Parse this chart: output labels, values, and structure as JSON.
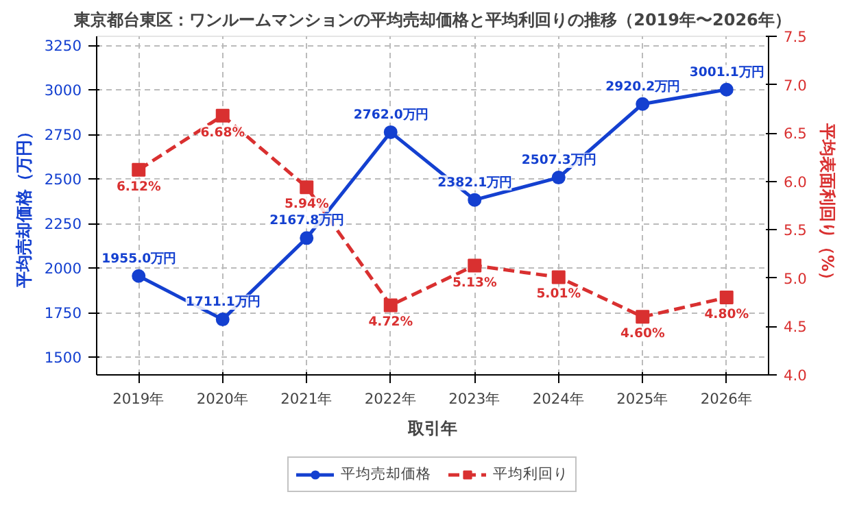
{
  "chart_data": {
    "type": "line",
    "title": "東京都台東区：ワンルームマンションの平均売却価格と平均利回りの推移（2019年〜2026年）",
    "xlabel": "取引年",
    "ylabel": "平均売却価格（万円）",
    "y2label": "平均表面利回り（%）",
    "categories": [
      "2019年",
      "2020年",
      "2021年",
      "2022年",
      "2023年",
      "2024年",
      "2025年",
      "2026年"
    ],
    "series": [
      {
        "name": "平均売却価格",
        "color": "#1440d0",
        "marker": "circle",
        "line_style": "solid",
        "values": [
          1955.0,
          1711.1,
          2167.8,
          2762.0,
          2382.1,
          2507.3,
          2920.2,
          3001.1
        ],
        "value_labels": [
          "1955.0万円",
          "1711.1万円",
          "2167.8万円",
          "2762.0万円",
          "2382.1万円",
          "2507.3万円",
          "2920.2万円",
          "3001.1万円"
        ]
      },
      {
        "name": "平均利回り",
        "color": "#d93030",
        "marker": "square",
        "line_style": "dashed",
        "axis": "y2",
        "values": [
          6.12,
          6.68,
          5.94,
          4.72,
          5.13,
          5.01,
          4.6,
          4.8
        ],
        "value_labels": [
          "6.12%",
          "6.68%",
          "5.94%",
          "4.72%",
          "5.13%",
          "5.01%",
          "4.60%",
          "4.80%"
        ]
      }
    ],
    "ylim": [
      1400,
      3300
    ],
    "yticks": [
      1500,
      1750,
      2000,
      2250,
      2500,
      2750,
      3000,
      3250
    ],
    "y2lim": [
      4.0,
      7.5
    ],
    "y2ticks": [
      {
        "value": 4.0,
        "label": "4.0"
      },
      {
        "value": 4.5,
        "label": "4.5"
      },
      {
        "value": 5.0,
        "label": "5.0"
      },
      {
        "value": 5.5,
        "label": "5.5"
      },
      {
        "value": 6.0,
        "label": "6.0"
      },
      {
        "value": 6.5,
        "label": "6.5"
      },
      {
        "value": 7.0,
        "label": "7.0"
      },
      {
        "value": 7.5,
        "label": "7.5"
      }
    ],
    "grid": true,
    "legend": "bottom"
  }
}
